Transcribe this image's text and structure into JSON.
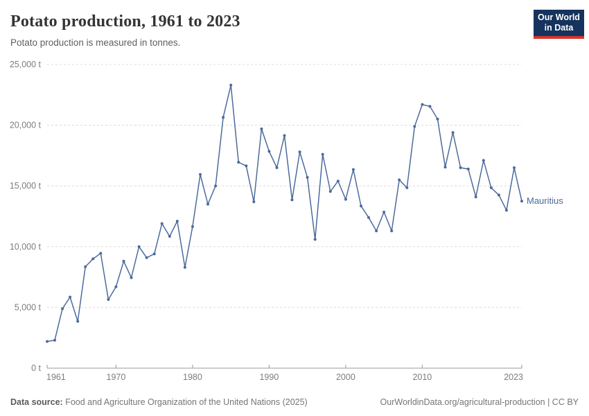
{
  "header": {
    "title": "Potato production, 1961 to 2023",
    "subtitle": "Potato production is measured in tonnes.",
    "logo": {
      "line1": "Our World",
      "line2": "in Data"
    }
  },
  "footer": {
    "source_label": "Data source:",
    "source_text": " Food and Agriculture Organization of the United Nations (2025)",
    "link_text": "OurWorldinData.org/agricultural-production | CC BY"
  },
  "colors": {
    "line": "#4C6A9C",
    "grid": "#dcdcdc",
    "axis": "#999999",
    "logo_bg": "#15335D",
    "logo_underline": "#D8352A"
  },
  "chart_data": {
    "type": "line",
    "title": "Potato production, 1961 to 2023",
    "subtitle": "Potato production is measured in tonnes.",
    "xlabel": "",
    "ylabel": "tonnes",
    "xlim": [
      1961,
      2023
    ],
    "ylim": [
      0,
      25000
    ],
    "grid": true,
    "legend_position": "end-of-line-label",
    "y_ticks": [
      {
        "value": 0,
        "label": "0 t"
      },
      {
        "value": 5000,
        "label": "5,000 t"
      },
      {
        "value": 10000,
        "label": "10,000 t"
      },
      {
        "value": 15000,
        "label": "15,000 t"
      },
      {
        "value": 20000,
        "label": "20,000 t"
      },
      {
        "value": 25000,
        "label": "25,000 t"
      }
    ],
    "x_ticks": [
      {
        "year": 1961,
        "label": "1961"
      },
      {
        "year": 1970,
        "label": "1970"
      },
      {
        "year": 1980,
        "label": "1980"
      },
      {
        "year": 1990,
        "label": "1990"
      },
      {
        "year": 2000,
        "label": "2000"
      },
      {
        "year": 2010,
        "label": "2010"
      },
      {
        "year": 2023,
        "label": "2023"
      }
    ],
    "series": [
      {
        "name": "Mauritius",
        "color": "#4C6A9C",
        "years": [
          1961,
          1962,
          1963,
          1964,
          1965,
          1966,
          1967,
          1968,
          1969,
          1970,
          1971,
          1972,
          1973,
          1974,
          1975,
          1976,
          1977,
          1978,
          1979,
          1980,
          1981,
          1982,
          1983,
          1984,
          1985,
          1986,
          1987,
          1988,
          1989,
          1990,
          1991,
          1992,
          1993,
          1994,
          1995,
          1996,
          1997,
          1998,
          1999,
          2000,
          2001,
          2002,
          2003,
          2004,
          2005,
          2006,
          2007,
          2008,
          2009,
          2010,
          2011,
          2012,
          2013,
          2014,
          2015,
          2016,
          2017,
          2018,
          2019,
          2020,
          2021,
          2022,
          2023
        ],
        "values": [
          2200,
          2300,
          4900,
          5850,
          3850,
          8350,
          9000,
          9450,
          5650,
          6700,
          8800,
          7450,
          10000,
          9100,
          9400,
          11900,
          10850,
          12100,
          8300,
          11650,
          15950,
          13500,
          15000,
          20650,
          23300,
          16950,
          16650,
          13700,
          19700,
          17850,
          16500,
          19150,
          13850,
          17800,
          15700,
          10600,
          17600,
          14550,
          15400,
          13900,
          16350,
          13350,
          12400,
          11300,
          12850,
          11300,
          15500,
          14850,
          19900,
          21700,
          21550,
          20500,
          16550,
          19400,
          16500,
          16400,
          14100,
          17100,
          14850,
          14250,
          13000,
          16500,
          13750
        ]
      }
    ]
  }
}
